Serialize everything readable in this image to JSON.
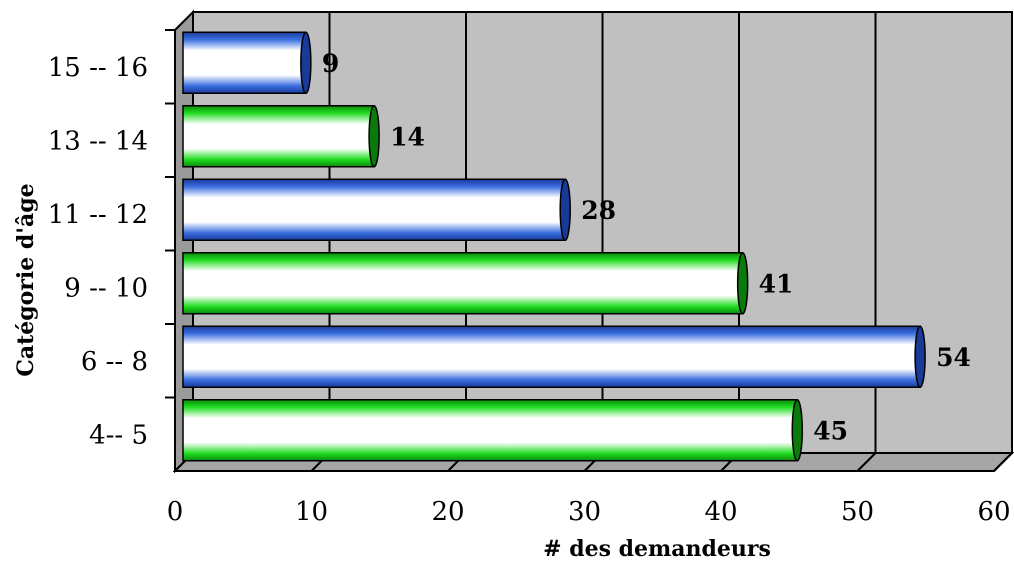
{
  "chart_data": {
    "type": "bar",
    "orientation": "horizontal",
    "title": "",
    "xlabel": "# des demandeurs",
    "ylabel": "Catégorie d'âge",
    "categories": [
      "4-- 5",
      "6 -- 8",
      "9 -- 10",
      "11 -- 12",
      "13 -- 14",
      "15 -- 16"
    ],
    "values": [
      45,
      54,
      41,
      28,
      14,
      9
    ],
    "xlim": [
      0,
      60
    ],
    "xticks": [
      0,
      10,
      20,
      30,
      40,
      50,
      60
    ],
    "grid": true,
    "legend": "none",
    "style": "3d-cylinder",
    "colors": {
      "series_a": "#1fd21f",
      "series_b": "#2f5fd0",
      "wall": "#c0c0c0",
      "floor": "#a6a6a6",
      "bar_face": "#ffffff"
    }
  }
}
